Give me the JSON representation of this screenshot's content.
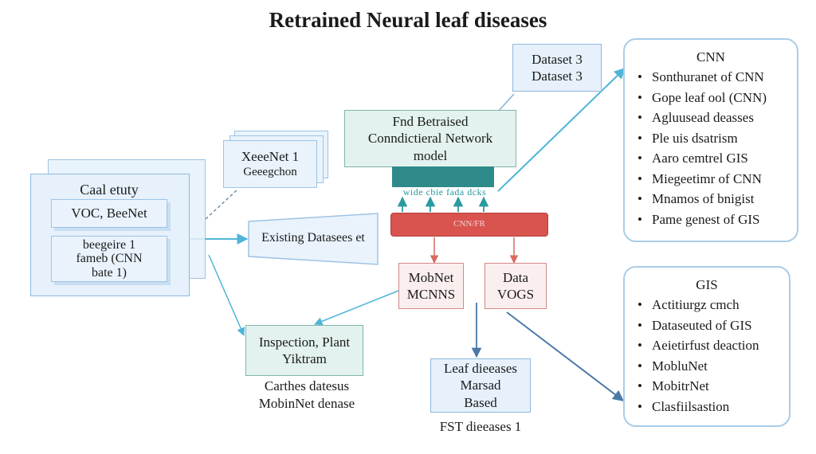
{
  "title": "Retrained Neural leaf diseases",
  "boxes": {
    "dataset": [
      "Dataset 3",
      "Dataset 3"
    ],
    "pretrained": [
      "Fnd Betraised",
      "Conndictieral Network",
      "model"
    ],
    "stack_small": [
      "XeeeNet 1",
      "Geeegchon"
    ],
    "case_study": "Caal etuty",
    "case_inner1": [
      "VOC, BeeNet"
    ],
    "case_inner2": [
      "beegeire 1",
      "fameb (CNN",
      "bate 1)"
    ],
    "existing": "Existing Datasees et",
    "teal_labels": "wide cbie fada dcks",
    "red_bar": "CNN/FR",
    "mobilenet": [
      "MobNet",
      "MCNNS"
    ],
    "data_vogs": [
      "Data",
      "VOGS"
    ],
    "inspection": [
      "Inspection, Plant",
      "Yiktram"
    ],
    "inspection_caption": [
      "Carthes datesus",
      "MobinNet denase"
    ],
    "leaf": [
      "Leaf dieeases",
      "Marsad",
      "Based"
    ],
    "leaf_caption": "FST dieeases 1"
  },
  "panel_cnn": {
    "title": "CNN",
    "items": [
      "Sonthuranet of CNN",
      "Gope leaf ool (CNN)",
      "Agluusead deasses",
      "Ple uis dsatrism",
      "Aaro cemtrel GIS",
      "Miegeetimr of CNN",
      "Mnamos of bnigist",
      "Pame genest of GIS"
    ]
  },
  "panel_gis": {
    "title": "GIS",
    "items": [
      "Actitiurgz cmch",
      "Dataseuted of GIS",
      "Aeietirfust deaction",
      "MobluNet",
      "MobitrNet",
      "Clasfiilsastion"
    ]
  },
  "colors": {
    "arrow_blue": "#5b9fd4",
    "arrow_cyan": "#4fb5d8",
    "arrow_red": "#d86a60",
    "arrow_dark": "#4a78a8",
    "red_bar": "#d9534f",
    "teal_model": "#2f8a8a",
    "teal_text": "#2a9aa0"
  }
}
